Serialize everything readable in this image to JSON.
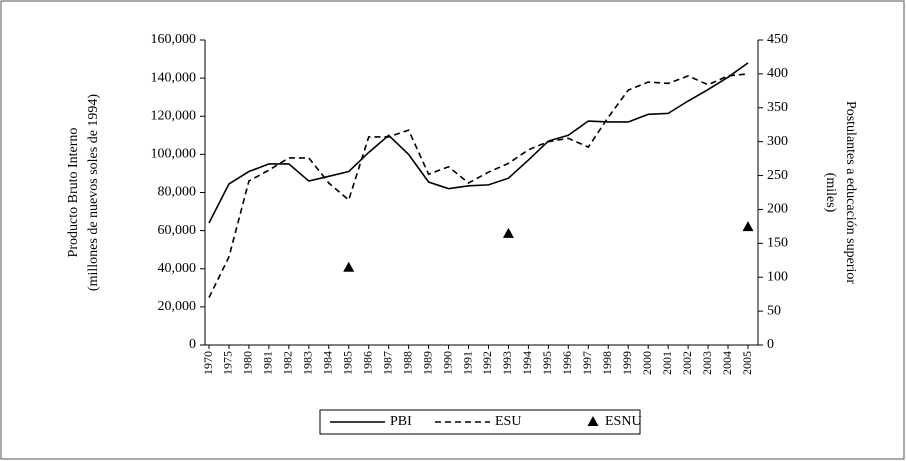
{
  "chart_data": {
    "type": "line",
    "categories": [
      "1970",
      "1975",
      "1980",
      "1981",
      "1982",
      "1983",
      "1984",
      "1985",
      "1986",
      "1987",
      "1988",
      "1989",
      "1990",
      "1991",
      "1992",
      "1993",
      "1994",
      "1995",
      "1996",
      "1997",
      "1998",
      "1999",
      "2000",
      "2001",
      "2002",
      "2003",
      "2004",
      "2005"
    ],
    "series": [
      {
        "name": "PBI",
        "color": "#000000",
        "style": "solid",
        "axis": "y",
        "values": [
          64000,
          84500,
          91000,
          95000,
          95000,
          86000,
          88500,
          91000,
          101000,
          110000,
          100000,
          85500,
          82000,
          83500,
          84000,
          87500,
          97000,
          107000,
          110000,
          117500,
          117000,
          117000,
          121000,
          121500,
          128000,
          134000,
          140500,
          148000
        ]
      },
      {
        "name": "ESU",
        "color": "#000000",
        "style": "dashed",
        "axis": "y2",
        "values": [
          70,
          130,
          242,
          258,
          276,
          276,
          239,
          214,
          307,
          307,
          317,
          252,
          263,
          239,
          255,
          268,
          288,
          300,
          305,
          292,
          336,
          376,
          388,
          386,
          397,
          384,
          397,
          400
        ]
      },
      {
        "name": "ESNU",
        "color": "#000000",
        "style": "marker",
        "axis": "y2",
        "values": [
          null,
          null,
          null,
          null,
          null,
          null,
          null,
          114,
          null,
          null,
          null,
          null,
          null,
          null,
          null,
          164,
          null,
          null,
          null,
          null,
          null,
          null,
          null,
          null,
          null,
          null,
          null,
          174
        ]
      }
    ],
    "ylabel": [
      "Producto Bruto Interno",
      "(millones de nuevos soles de 1994)"
    ],
    "y2label": [
      "Postulantes a educación superior",
      "(miles)"
    ],
    "ylim": [
      0,
      160000
    ],
    "yticks": [
      0,
      {
        "value": 20000,
        "label": "20,000"
      },
      {
        "value": 40000,
        "label": "40,000"
      },
      {
        "value": 60000,
        "label": "60,000"
      },
      {
        "value": 80000,
        "label": "80,000"
      },
      {
        "value": 100000,
        "label": "100,000"
      },
      {
        "value": 120000,
        "label": "120,000"
      },
      {
        "value": 140000,
        "label": "140,000"
      },
      {
        "value": 160000,
        "label": "160,000"
      }
    ],
    "y2lim": [
      0,
      450
    ],
    "y2ticks": [
      0,
      50,
      100,
      150,
      200,
      250,
      300,
      350,
      400,
      450
    ],
    "legend": "bottom"
  }
}
